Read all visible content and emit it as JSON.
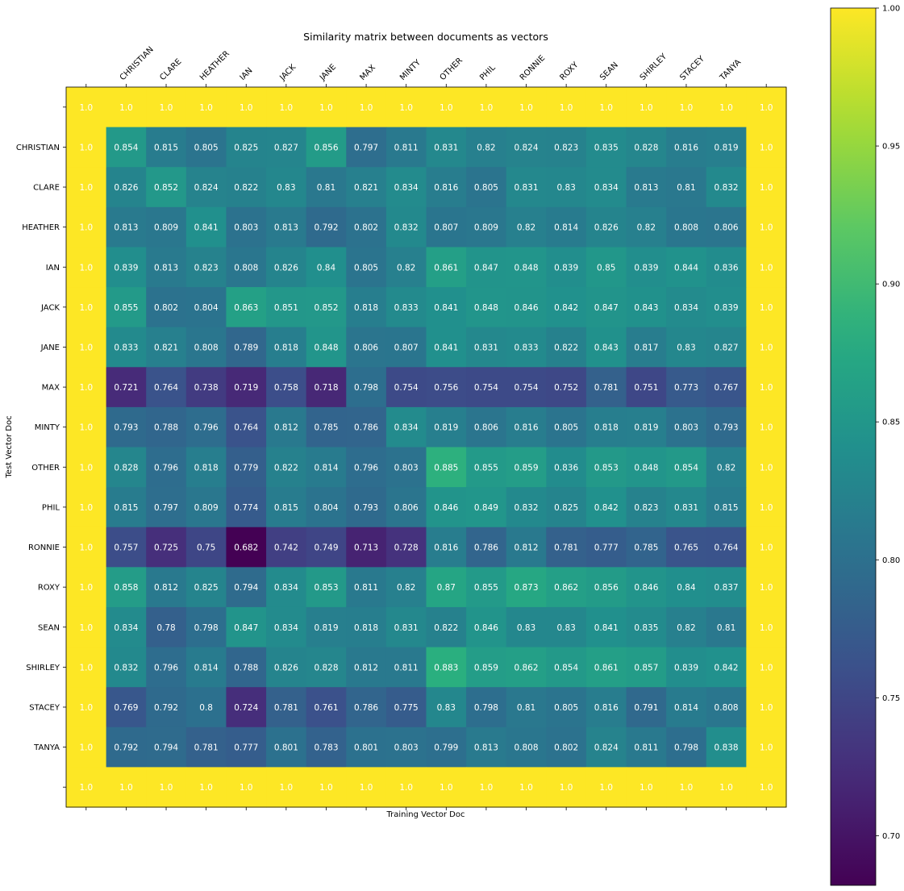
{
  "chart_data": {
    "type": "heatmap",
    "title": "Similarity matrix between documents as vectors",
    "xlabel": "Training Vector Doc",
    "ylabel": "Test Vector Doc",
    "x_categories": [
      "",
      "CHRISTIAN",
      "CLARE",
      "HEATHER",
      "IAN",
      "JACK",
      "JANE",
      "MAX",
      "MINTY",
      "OTHER",
      "PHIL",
      "RONNIE",
      "ROXY",
      "SEAN",
      "SHIRLEY",
      "STACEY",
      "TANYA",
      ""
    ],
    "y_categories": [
      "",
      "CHRISTIAN",
      "CLARE",
      "HEATHER",
      "IAN",
      "JACK",
      "JANE",
      "MAX",
      "MINTY",
      "OTHER",
      "PHIL",
      "RONNIE",
      "ROXY",
      "SEAN",
      "SHIRLEY",
      "STACEY",
      "TANYA",
      ""
    ],
    "values": [
      [
        "1.0",
        "1.0",
        "1.0",
        "1.0",
        "1.0",
        "1.0",
        "1.0",
        "1.0",
        "1.0",
        "1.0",
        "1.0",
        "1.0",
        "1.0",
        "1.0",
        "1.0",
        "1.0",
        "1.0",
        "1.0"
      ],
      [
        "1.0",
        "0.854",
        "0.815",
        "0.805",
        "0.825",
        "0.827",
        "0.856",
        "0.797",
        "0.811",
        "0.831",
        "0.82",
        "0.824",
        "0.823",
        "0.835",
        "0.828",
        "0.816",
        "0.819",
        "1.0"
      ],
      [
        "1.0",
        "0.826",
        "0.852",
        "0.824",
        "0.822",
        "0.83",
        "0.81",
        "0.821",
        "0.834",
        "0.816",
        "0.805",
        "0.831",
        "0.83",
        "0.834",
        "0.813",
        "0.81",
        "0.832",
        "1.0"
      ],
      [
        "1.0",
        "0.813",
        "0.809",
        "0.841",
        "0.803",
        "0.813",
        "0.792",
        "0.802",
        "0.832",
        "0.807",
        "0.809",
        "0.82",
        "0.814",
        "0.826",
        "0.82",
        "0.808",
        "0.806",
        "1.0"
      ],
      [
        "1.0",
        "0.839",
        "0.813",
        "0.823",
        "0.808",
        "0.826",
        "0.84",
        "0.805",
        "0.82",
        "0.861",
        "0.847",
        "0.848",
        "0.839",
        "0.85",
        "0.839",
        "0.844",
        "0.836",
        "1.0"
      ],
      [
        "1.0",
        "0.855",
        "0.802",
        "0.804",
        "0.863",
        "0.851",
        "0.852",
        "0.818",
        "0.833",
        "0.841",
        "0.848",
        "0.846",
        "0.842",
        "0.847",
        "0.843",
        "0.834",
        "0.839",
        "1.0"
      ],
      [
        "1.0",
        "0.833",
        "0.821",
        "0.808",
        "0.789",
        "0.818",
        "0.848",
        "0.806",
        "0.807",
        "0.841",
        "0.831",
        "0.833",
        "0.822",
        "0.843",
        "0.817",
        "0.83",
        "0.827",
        "1.0"
      ],
      [
        "1.0",
        "0.721",
        "0.764",
        "0.738",
        "0.719",
        "0.758",
        "0.718",
        "0.798",
        "0.754",
        "0.756",
        "0.754",
        "0.754",
        "0.752",
        "0.781",
        "0.751",
        "0.773",
        "0.767",
        "1.0"
      ],
      [
        "1.0",
        "0.793",
        "0.788",
        "0.796",
        "0.764",
        "0.812",
        "0.785",
        "0.786",
        "0.834",
        "0.819",
        "0.806",
        "0.816",
        "0.805",
        "0.818",
        "0.819",
        "0.803",
        "0.793",
        "1.0"
      ],
      [
        "1.0",
        "0.828",
        "0.796",
        "0.818",
        "0.779",
        "0.822",
        "0.814",
        "0.796",
        "0.803",
        "0.885",
        "0.855",
        "0.859",
        "0.836",
        "0.853",
        "0.848",
        "0.854",
        "0.82",
        "1.0"
      ],
      [
        "1.0",
        "0.815",
        "0.797",
        "0.809",
        "0.774",
        "0.815",
        "0.804",
        "0.793",
        "0.806",
        "0.846",
        "0.849",
        "0.832",
        "0.825",
        "0.842",
        "0.823",
        "0.831",
        "0.815",
        "1.0"
      ],
      [
        "1.0",
        "0.757",
        "0.725",
        "0.75",
        "0.682",
        "0.742",
        "0.749",
        "0.713",
        "0.728",
        "0.816",
        "0.786",
        "0.812",
        "0.781",
        "0.777",
        "0.785",
        "0.765",
        "0.764",
        "1.0"
      ],
      [
        "1.0",
        "0.858",
        "0.812",
        "0.825",
        "0.794",
        "0.834",
        "0.853",
        "0.811",
        "0.82",
        "0.87",
        "0.855",
        "0.873",
        "0.862",
        "0.856",
        "0.846",
        "0.84",
        "0.837",
        "1.0"
      ],
      [
        "1.0",
        "0.834",
        "0.78",
        "0.798",
        "0.847",
        "0.834",
        "0.819",
        "0.818",
        "0.831",
        "0.822",
        "0.846",
        "0.83",
        "0.83",
        "0.841",
        "0.835",
        "0.82",
        "0.81",
        "1.0"
      ],
      [
        "1.0",
        "0.832",
        "0.796",
        "0.814",
        "0.788",
        "0.826",
        "0.828",
        "0.812",
        "0.811",
        "0.883",
        "0.859",
        "0.862",
        "0.854",
        "0.861",
        "0.857",
        "0.839",
        "0.842",
        "1.0"
      ],
      [
        "1.0",
        "0.769",
        "0.792",
        "0.8",
        "0.724",
        "0.781",
        "0.761",
        "0.786",
        "0.775",
        "0.83",
        "0.798",
        "0.81",
        "0.805",
        "0.816",
        "0.791",
        "0.814",
        "0.808",
        "1.0"
      ],
      [
        "1.0",
        "0.792",
        "0.794",
        "0.781",
        "0.777",
        "0.801",
        "0.783",
        "0.801",
        "0.803",
        "0.799",
        "0.813",
        "0.808",
        "0.802",
        "0.824",
        "0.811",
        "0.798",
        "0.838",
        "1.0"
      ],
      [
        "1.0",
        "1.0",
        "1.0",
        "1.0",
        "1.0",
        "1.0",
        "1.0",
        "1.0",
        "1.0",
        "1.0",
        "1.0",
        "1.0",
        "1.0",
        "1.0",
        "1.0",
        "1.0",
        "1.0",
        "1.0"
      ]
    ],
    "colormap": "viridis",
    "color_range": [
      0.682,
      1.0
    ],
    "colorbar_ticks": [
      "0.70",
      "0.75",
      "0.80",
      "0.85",
      "0.90",
      "0.95",
      "1.00"
    ],
    "grid": false,
    "colorbar_position": "right"
  }
}
